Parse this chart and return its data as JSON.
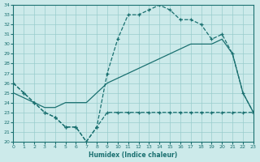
{
  "x": [
    0,
    1,
    2,
    3,
    4,
    5,
    6,
    7,
    8,
    9,
    10,
    11,
    12,
    13,
    14,
    15,
    16,
    17,
    18,
    19,
    20,
    21,
    22,
    23
  ],
  "line_upper": [
    26,
    25,
    24,
    23,
    22.5,
    21.5,
    21.5,
    20,
    21.5,
    27,
    30.5,
    33,
    33,
    33.5,
    34,
    33.5,
    32.5,
    32.5,
    32,
    30.5,
    31,
    29,
    25,
    23
  ],
  "line_mid": [
    25,
    24.5,
    24,
    23.5,
    23.5,
    24,
    24,
    24,
    25,
    26,
    26.5,
    27,
    27.5,
    28,
    28.5,
    29,
    29.5,
    30,
    30,
    30,
    30.5,
    29,
    25,
    23
  ],
  "line_lower": [
    26,
    25,
    24,
    23,
    22.5,
    21.5,
    21.5,
    20,
    21.5,
    23,
    23,
    23,
    23,
    23,
    23,
    23,
    23,
    23,
    23,
    23,
    23,
    23,
    23,
    23
  ],
  "bg_color": "#cceaea",
  "line_color": "#1a7070",
  "grid_color": "#99cccc",
  "xlabel": "Humidex (Indice chaleur)",
  "ylim": [
    20,
    34
  ],
  "xlim": [
    0,
    23
  ],
  "yticks": [
    20,
    21,
    22,
    23,
    24,
    25,
    26,
    27,
    28,
    29,
    30,
    31,
    32,
    33,
    34
  ],
  "xticks": [
    0,
    1,
    2,
    3,
    4,
    5,
    6,
    7,
    8,
    9,
    10,
    11,
    12,
    13,
    14,
    15,
    16,
    17,
    18,
    19,
    20,
    21,
    22,
    23
  ]
}
